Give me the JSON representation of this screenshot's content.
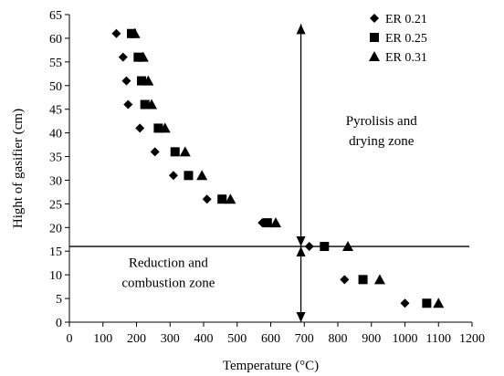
{
  "chart_data": {
    "type": "scatter",
    "xlabel": "Temperature (°C)",
    "ylabel": "Hight of gasifier (cm)",
    "xlim": [
      0,
      1200
    ],
    "ylim": [
      0,
      65
    ],
    "xticks": [
      0,
      100,
      200,
      300,
      400,
      500,
      600,
      700,
      800,
      900,
      1000,
      1100,
      1200
    ],
    "yticks": [
      0,
      5,
      10,
      15,
      20,
      25,
      30,
      35,
      40,
      45,
      50,
      55,
      60,
      65
    ],
    "grid": false,
    "legend_position": "top-right",
    "series": [
      {
        "name": "ER 0.21",
        "marker": "diamond",
        "points": [
          [
            140,
            61
          ],
          [
            160,
            56
          ],
          [
            170,
            51
          ],
          [
            175,
            46
          ],
          [
            210,
            41
          ],
          [
            255,
            36
          ],
          [
            310,
            31
          ],
          [
            410,
            26
          ],
          [
            575,
            21
          ],
          [
            715,
            16
          ],
          [
            820,
            9
          ],
          [
            1000,
            4
          ]
        ]
      },
      {
        "name": "ER 0.25",
        "marker": "square",
        "points": [
          [
            185,
            61
          ],
          [
            205,
            56
          ],
          [
            215,
            51
          ],
          [
            225,
            46
          ],
          [
            265,
            41
          ],
          [
            315,
            36
          ],
          [
            355,
            31
          ],
          [
            455,
            26
          ],
          [
            590,
            21
          ],
          [
            760,
            16
          ],
          [
            875,
            9
          ],
          [
            1065,
            4
          ]
        ]
      },
      {
        "name": "ER 0.31",
        "marker": "triangle",
        "points": [
          [
            195,
            61
          ],
          [
            220,
            56
          ],
          [
            235,
            51
          ],
          [
            245,
            46
          ],
          [
            285,
            41
          ],
          [
            345,
            36
          ],
          [
            395,
            31
          ],
          [
            480,
            26
          ],
          [
            615,
            21
          ],
          [
            830,
            16
          ],
          [
            925,
            9
          ],
          [
            1100,
            4
          ]
        ]
      }
    ],
    "reference_lines": {
      "horizontal_y": 16,
      "vertical_x": 690,
      "arrow_up_to_y": 63,
      "arrow_down_to_y": 0
    },
    "annotations": [
      {
        "lines": [
          "Pyrolisis and",
          "drying zone"
        ],
        "x": 930,
        "y": 40.5
      },
      {
        "lines": [
          "Reduction and",
          "combustion zone"
        ],
        "x": 295,
        "y": 10.5
      }
    ]
  }
}
